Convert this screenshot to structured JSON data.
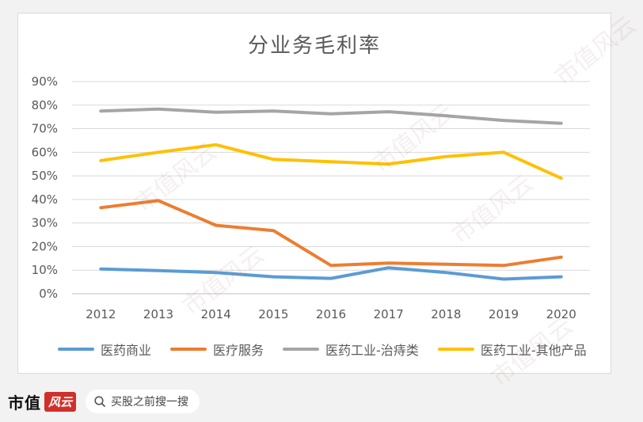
{
  "chart_data": {
    "type": "line",
    "title": "分业务毛利率",
    "categories": [
      "2012",
      "2013",
      "2014",
      "2015",
      "2016",
      "2017",
      "2018",
      "2019",
      "2020"
    ],
    "yticks": [
      "0%",
      "10%",
      "20%",
      "30%",
      "40%",
      "50%",
      "60%",
      "70%",
      "80%",
      "90%"
    ],
    "ylim": [
      0,
      90
    ],
    "grid": true,
    "legend_position": "bottom",
    "series": [
      {
        "name": "医药商业",
        "color": "#5b9bd5",
        "values": [
          10.5,
          9.8,
          9.0,
          7.2,
          6.5,
          11.0,
          9.0,
          6.2,
          7.2
        ]
      },
      {
        "name": "医疗服务",
        "color": "#ed7d31",
        "values": [
          36.5,
          39.5,
          29.0,
          26.8,
          12.0,
          13.0,
          12.5,
          12.0,
          15.5
        ]
      },
      {
        "name": "医药工业-治痔类",
        "color": "#a5a5a5",
        "values": [
          77.5,
          78.3,
          77.0,
          77.5,
          76.3,
          77.2,
          75.5,
          73.5,
          72.3
        ]
      },
      {
        "name": "医药工业-其他产品",
        "color": "#ffc000",
        "values": [
          56.5,
          60.0,
          63.2,
          57.0,
          56.0,
          55.0,
          58.2,
          60.0,
          49.0
        ]
      }
    ]
  },
  "watermark_text": "市值风云",
  "footer": {
    "brand": "市值",
    "brand_badge": "风云",
    "search_text": "买股之前搜一搜"
  }
}
